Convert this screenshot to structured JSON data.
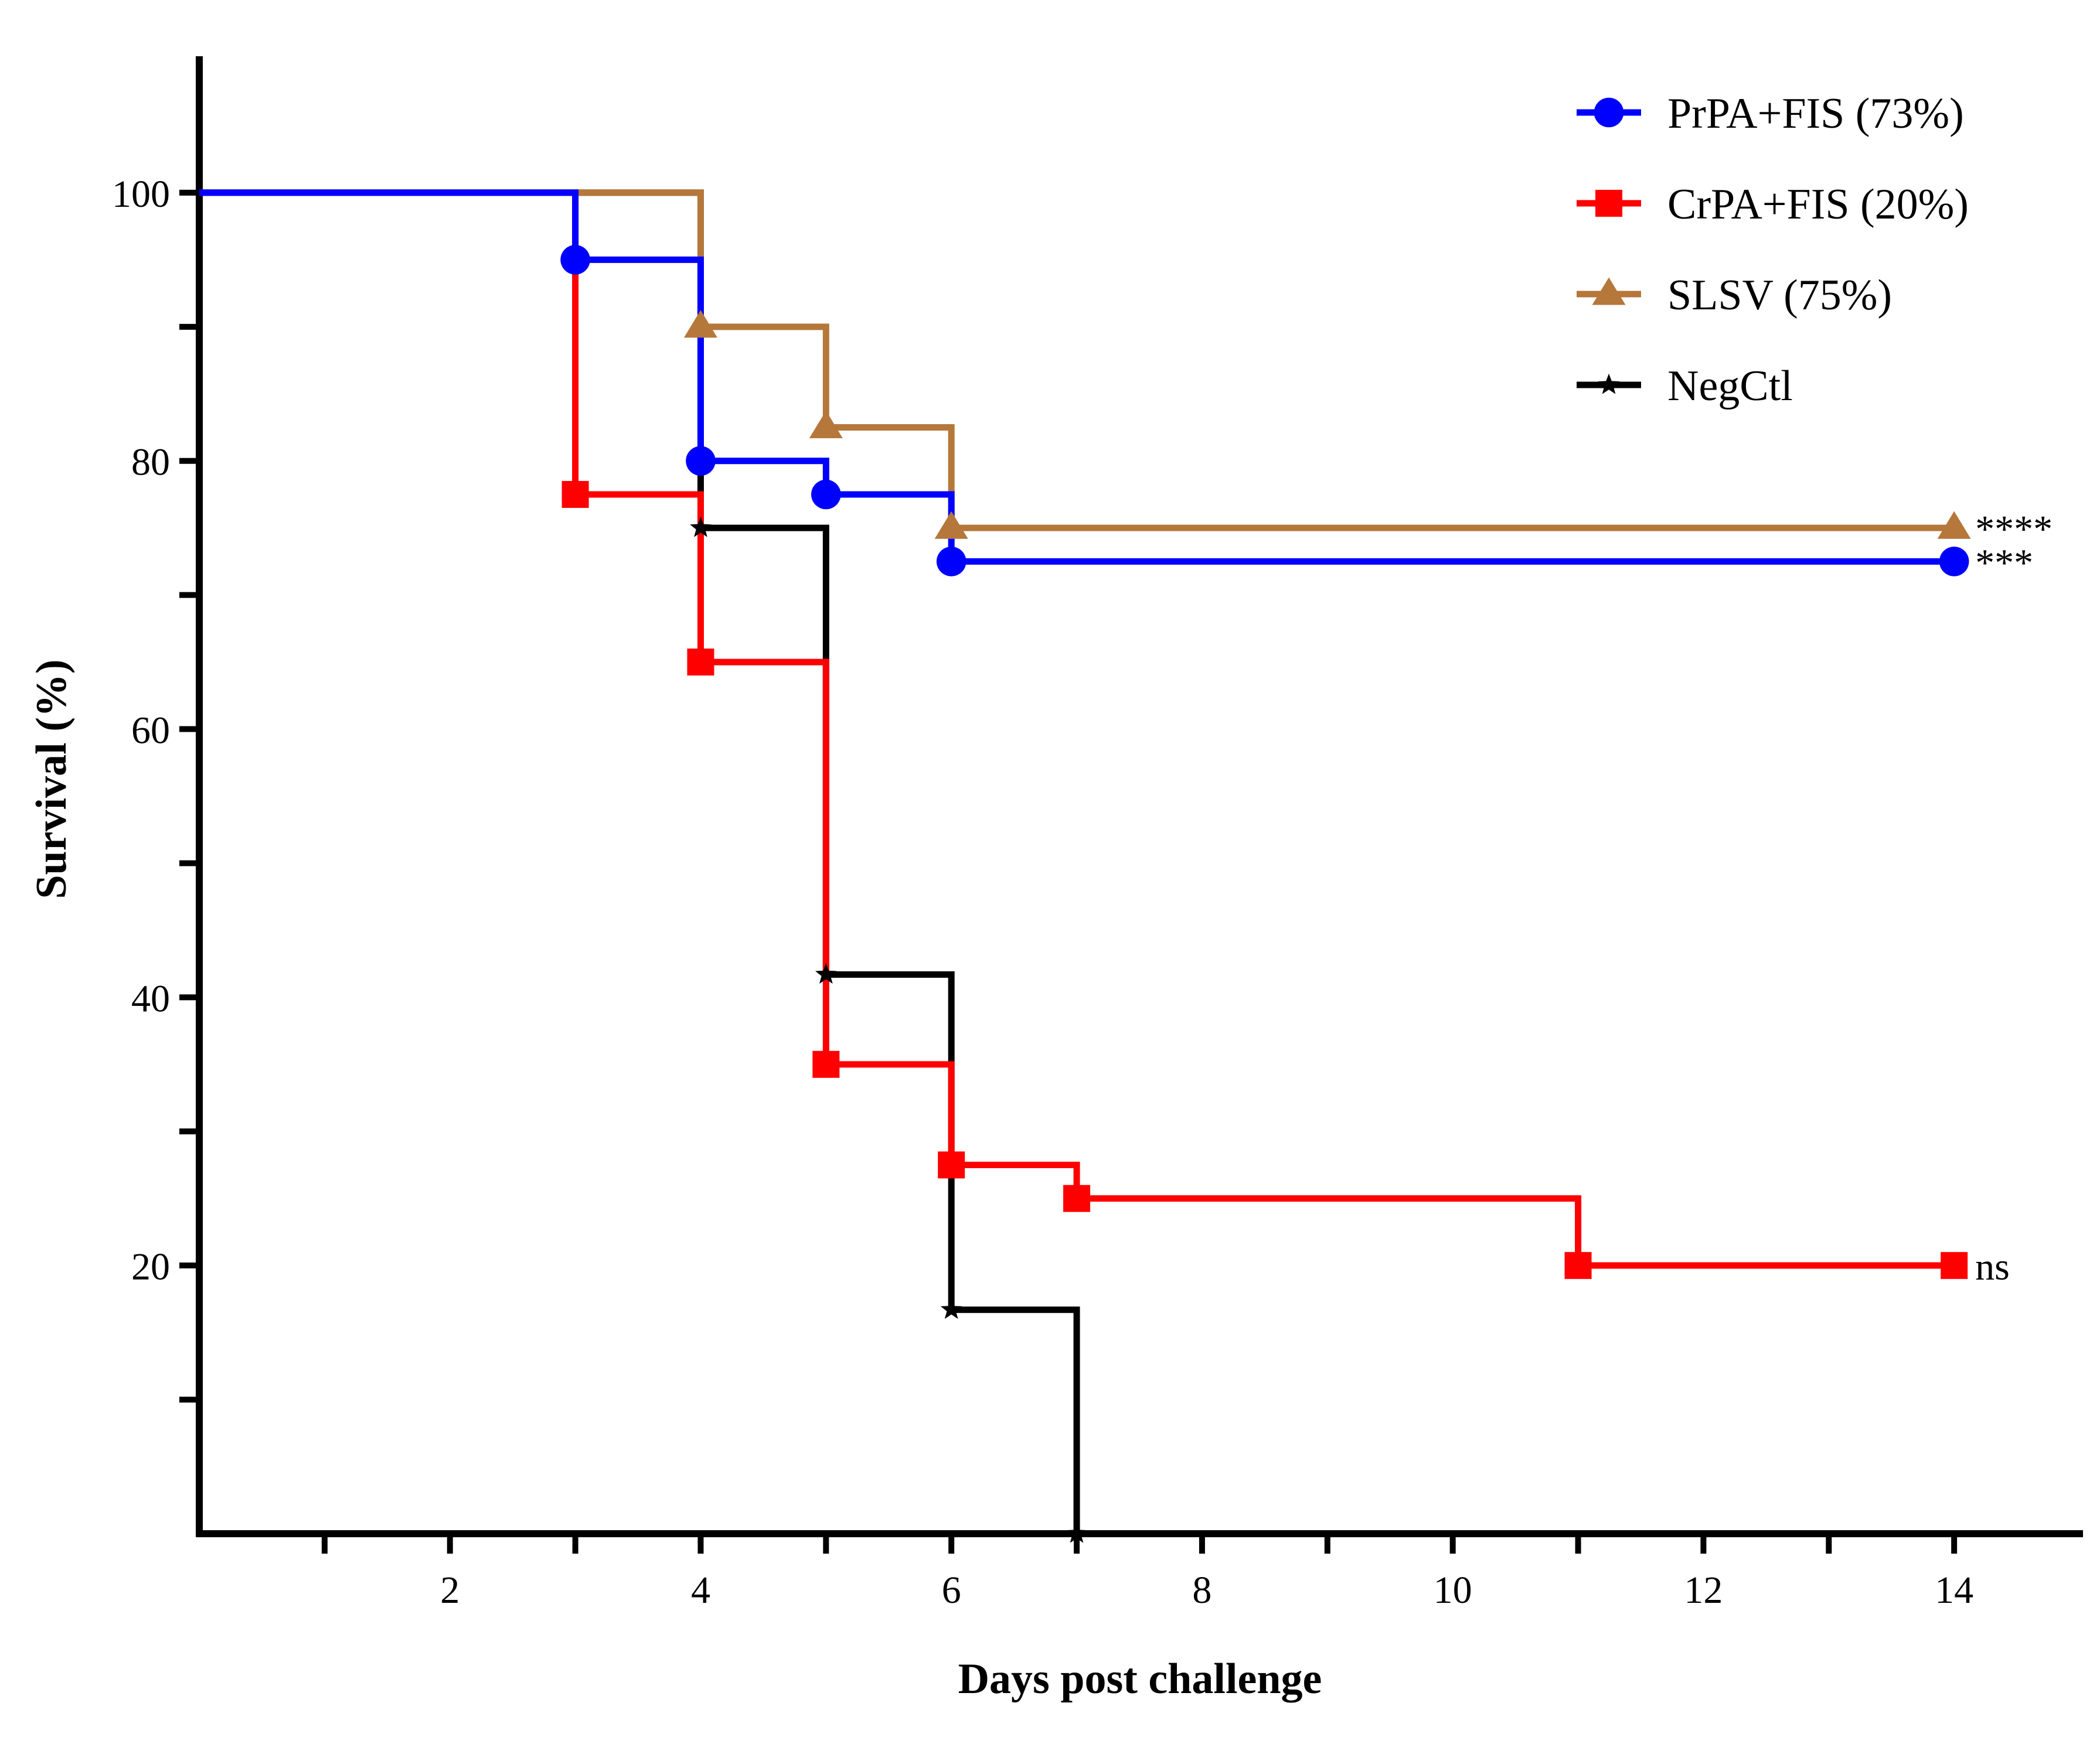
{
  "chart_data": {
    "type": "line",
    "subtype": "kaplan-meier-step",
    "title": "",
    "xlabel": "Days post challenge",
    "ylabel": "Survival (%)",
    "xlim": [
      0,
      15
    ],
    "ylim": [
      0,
      110
    ],
    "x_ticks": [
      2,
      4,
      6,
      8,
      10,
      12,
      14
    ],
    "x_minor_ticks": [
      1,
      3,
      5,
      7,
      9,
      11,
      13
    ],
    "y_ticks": [
      20,
      40,
      60,
      80,
      100
    ],
    "y_minor_ticks": [
      10,
      30,
      50,
      70,
      90
    ],
    "legend_position": "top-right",
    "series": [
      {
        "name": "PrPA+FIS (73%)",
        "color": "#0000ff",
        "marker": "circle",
        "steps": [
          [
            0,
            100
          ],
          [
            3,
            95
          ],
          [
            4,
            80
          ],
          [
            5,
            77.5
          ],
          [
            6,
            72.5
          ],
          [
            14,
            72.5
          ]
        ],
        "markers": [
          [
            3,
            95
          ],
          [
            4,
            80
          ],
          [
            5,
            77.5
          ],
          [
            6,
            72.5
          ],
          [
            14,
            72.5
          ]
        ],
        "significance": "***"
      },
      {
        "name": "CrPA+FIS (20%)",
        "color": "#ff0000",
        "marker": "square",
        "steps": [
          [
            0,
            100
          ],
          [
            3,
            77.5
          ],
          [
            4,
            65
          ],
          [
            5,
            35
          ],
          [
            6,
            27.5
          ],
          [
            7,
            25
          ],
          [
            11,
            20
          ],
          [
            14,
            20
          ]
        ],
        "markers": [
          [
            3,
            77.5
          ],
          [
            4,
            65
          ],
          [
            5,
            35
          ],
          [
            6,
            27.5
          ],
          [
            7,
            25
          ],
          [
            11,
            20
          ],
          [
            14,
            20
          ]
        ],
        "significance": "ns"
      },
      {
        "name": "SLSV (75%)",
        "color": "#b5773a",
        "marker": "triangle",
        "steps": [
          [
            0,
            100
          ],
          [
            4,
            90
          ],
          [
            5,
            82.5
          ],
          [
            6,
            75
          ],
          [
            14,
            75
          ]
        ],
        "markers": [
          [
            4,
            90
          ],
          [
            5,
            82.5
          ],
          [
            6,
            75
          ],
          [
            14,
            75
          ]
        ],
        "significance": "****"
      },
      {
        "name": "NegCtl",
        "color": "#000000",
        "marker": "star",
        "steps": [
          [
            0,
            100
          ],
          [
            4,
            75
          ],
          [
            5,
            41.7
          ],
          [
            6,
            16.7
          ],
          [
            7,
            0
          ]
        ],
        "markers": [
          [
            4,
            75
          ],
          [
            5,
            41.7
          ],
          [
            6,
            16.7
          ],
          [
            7,
            0
          ]
        ],
        "significance": ""
      }
    ]
  }
}
